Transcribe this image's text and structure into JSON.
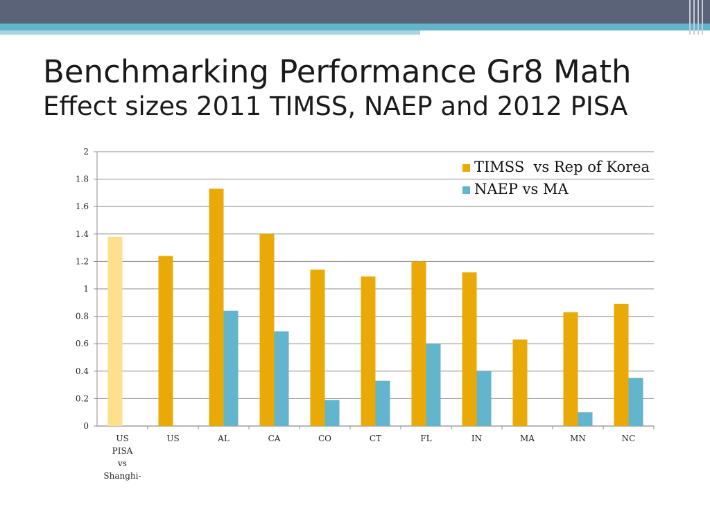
{
  "slide": {
    "title_line1": "Benchmarking Performance Gr8 Math",
    "title_line2": "Effect sizes 2011 TIMSS, NAEP and 2012 PISA"
  },
  "colors": {
    "header_band": "#5a6377",
    "accent_stripe": "#62b5cc",
    "timss": "#e9aa08",
    "timss_pisa": "#fde08e",
    "naep": "#62b5cc",
    "gridline": "#8c8c8c"
  },
  "chart_data": {
    "type": "bar",
    "categories": [
      "US\nPISA\nvs\nShanghi-",
      "US",
      "AL",
      "CA",
      "CO",
      "CT",
      "FL",
      "IN",
      "MA",
      "MN",
      "NC"
    ],
    "series": [
      {
        "name": "TIMSS  vs Rep of Korea",
        "values": [
          1.38,
          1.24,
          1.73,
          1.4,
          1.14,
          1.09,
          1.2,
          1.12,
          0.63,
          0.83,
          0.89
        ],
        "point_colors": [
          "#fde08e",
          null,
          null,
          null,
          null,
          null,
          null,
          null,
          null,
          null,
          null
        ]
      },
      {
        "name": "NAEP vs MA",
        "values": [
          null,
          null,
          0.84,
          0.69,
          0.19,
          0.33,
          0.6,
          0.4,
          null,
          0.1,
          0.35
        ]
      }
    ],
    "ylim": [
      0,
      2
    ],
    "yticks": [
      "0",
      "0.2",
      "0.4",
      "0.6",
      "0.8",
      "1",
      "1.2",
      "1.4",
      "1.6",
      "1.8",
      "2"
    ],
    "grid": true,
    "legend_position": "top-right"
  }
}
